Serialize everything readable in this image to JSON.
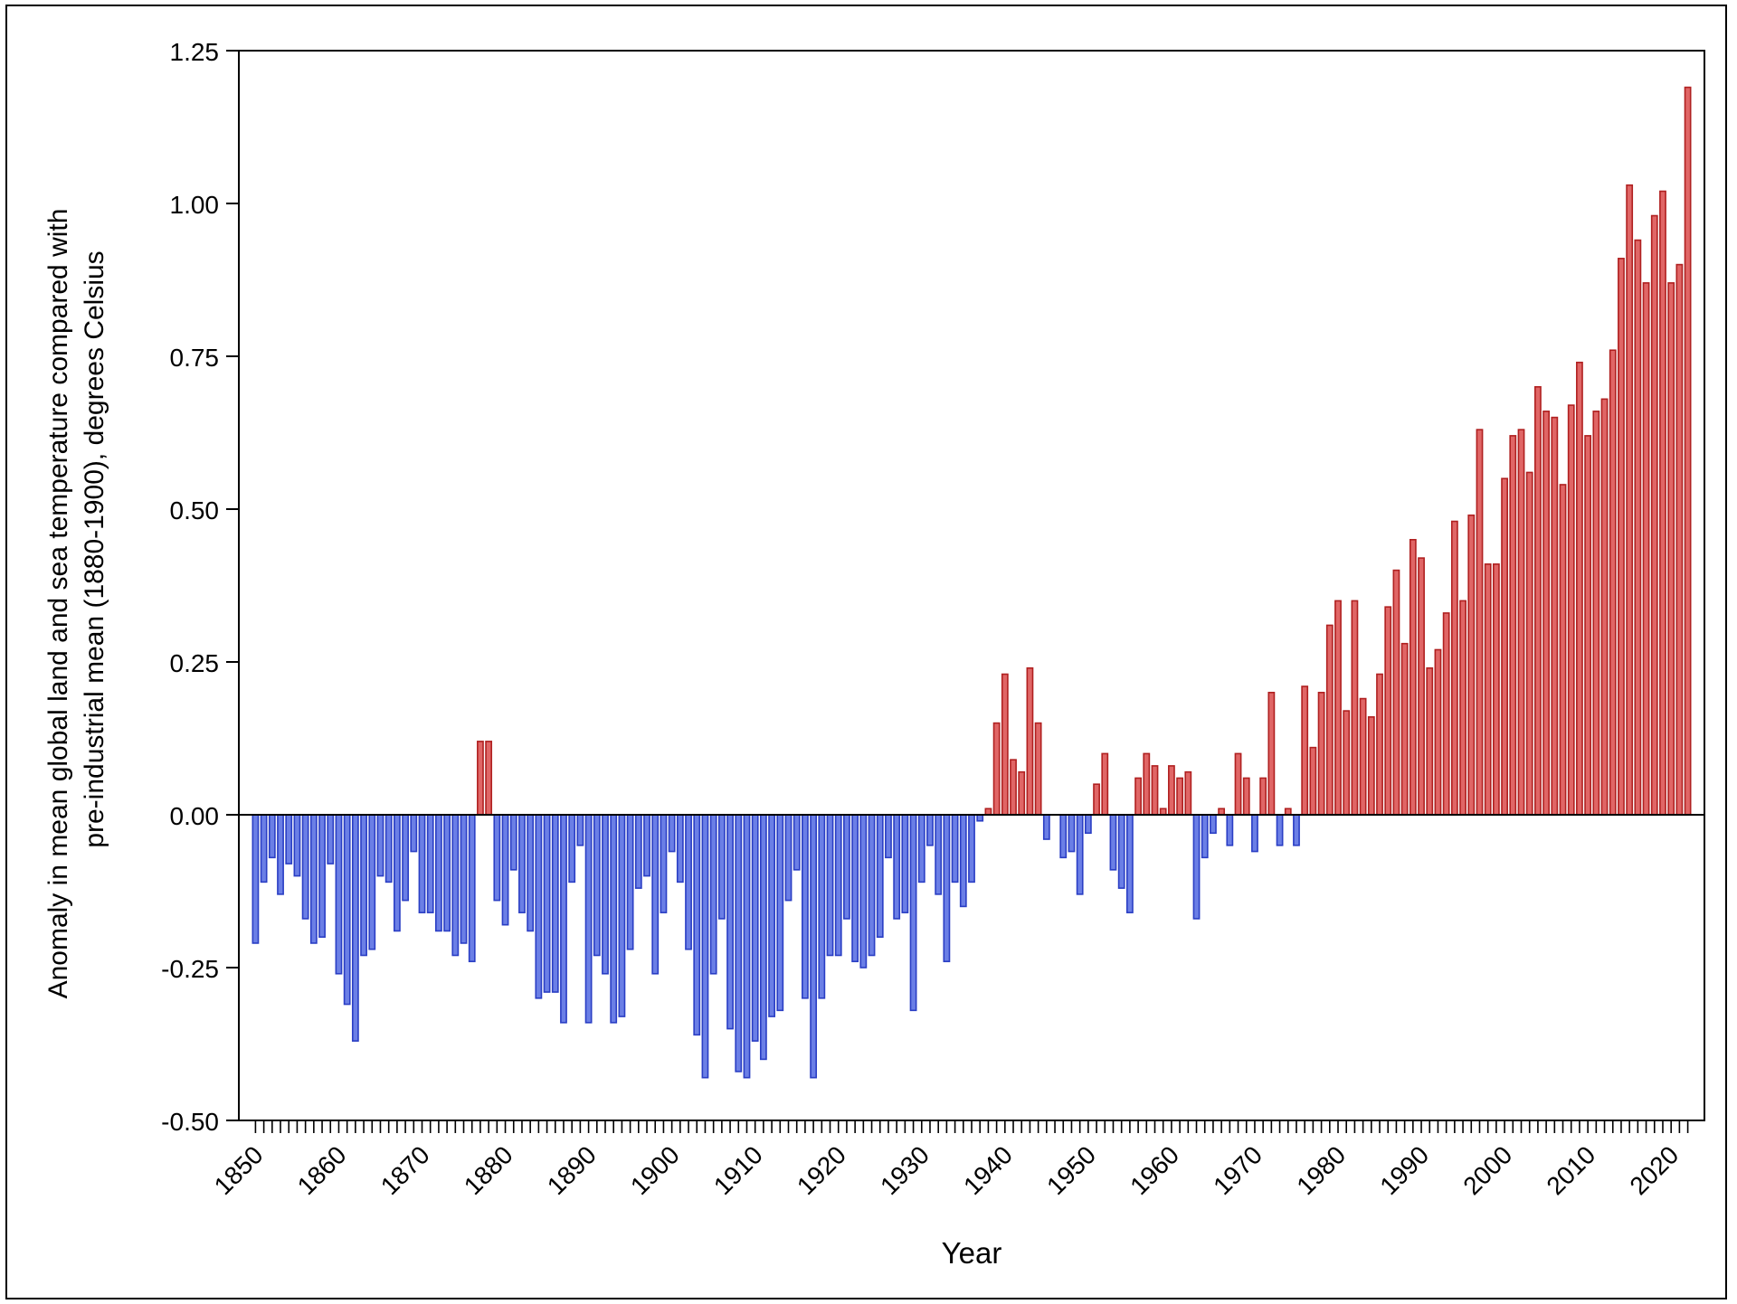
{
  "chart_data": {
    "type": "bar",
    "title": "",
    "xlabel": "Year",
    "ylabel_line1": "Anomaly in mean global land and sea temperature compared with",
    "ylabel_line2": "pre-industrial mean (1880-1900), degrees Celsius",
    "ylim": [
      -0.5,
      1.25
    ],
    "yticks": [
      -0.5,
      -0.25,
      0.0,
      0.25,
      0.5,
      0.75,
      1.0,
      1.25
    ],
    "ytick_labels": [
      "-0.50",
      "-0.25",
      "0.00",
      "0.25",
      "0.50",
      "0.75",
      "1.00",
      "1.25"
    ],
    "xlim": [
      1848,
      2024
    ],
    "xticks_labeled": [
      1850,
      1860,
      1870,
      1880,
      1890,
      1900,
      1910,
      1920,
      1930,
      1940,
      1950,
      1960,
      1970,
      1980,
      1990,
      2000,
      2010,
      2020
    ],
    "grid": false,
    "legend": "none",
    "colors": {
      "positive_fill": "#e06666",
      "positive_stroke": "#b02020",
      "negative_fill": "#6b7fe6",
      "negative_stroke": "#2a3ec4"
    },
    "x_start": 1850,
    "values": [
      -0.21,
      -0.11,
      -0.07,
      -0.13,
      -0.08,
      -0.1,
      -0.17,
      -0.21,
      -0.2,
      -0.08,
      -0.26,
      -0.31,
      -0.37,
      -0.23,
      -0.22,
      -0.1,
      -0.11,
      -0.19,
      -0.14,
      -0.06,
      -0.16,
      -0.16,
      -0.19,
      -0.19,
      -0.23,
      -0.21,
      -0.24,
      0.12,
      0.12,
      -0.14,
      -0.18,
      -0.09,
      -0.16,
      -0.19,
      -0.3,
      -0.29,
      -0.29,
      -0.34,
      -0.11,
      -0.05,
      -0.34,
      -0.23,
      -0.26,
      -0.34,
      -0.33,
      -0.22,
      -0.12,
      -0.1,
      -0.26,
      -0.16,
      -0.06,
      -0.11,
      -0.22,
      -0.36,
      -0.43,
      -0.26,
      -0.17,
      -0.35,
      -0.42,
      -0.43,
      -0.37,
      -0.4,
      -0.33,
      -0.32,
      -0.14,
      -0.09,
      -0.3,
      -0.43,
      -0.3,
      -0.23,
      -0.23,
      -0.17,
      -0.24,
      -0.25,
      -0.23,
      -0.2,
      -0.07,
      -0.17,
      -0.16,
      -0.32,
      -0.11,
      -0.05,
      -0.13,
      -0.24,
      -0.11,
      -0.15,
      -0.11,
      -0.01,
      0.01,
      0.15,
      0.23,
      0.09,
      0.07,
      0.24,
      0.15,
      -0.04,
      0.0,
      -0.07,
      -0.06,
      -0.13,
      -0.03,
      0.05,
      0.1,
      -0.09,
      -0.12,
      -0.16,
      0.06,
      0.1,
      0.08,
      0.01,
      0.08,
      0.06,
      0.07,
      -0.17,
      -0.07,
      -0.03,
      0.01,
      -0.05,
      0.1,
      0.06,
      -0.06,
      0.06,
      0.2,
      -0.05,
      0.01,
      -0.05,
      0.21,
      0.11,
      0.2,
      0.31,
      0.35,
      0.17,
      0.35,
      0.19,
      0.16,
      0.23,
      0.34,
      0.4,
      0.28,
      0.45,
      0.42,
      0.24,
      0.27,
      0.33,
      0.48,
      0.35,
      0.49,
      0.63,
      0.41,
      0.41,
      0.55,
      0.62,
      0.63,
      0.56,
      0.7,
      0.66,
      0.65,
      0.54,
      0.67,
      0.74,
      0.62,
      0.66,
      0.68,
      0.76,
      0.91,
      1.03,
      0.94,
      0.87,
      0.98,
      1.02,
      0.87,
      0.9,
      1.19
    ]
  }
}
